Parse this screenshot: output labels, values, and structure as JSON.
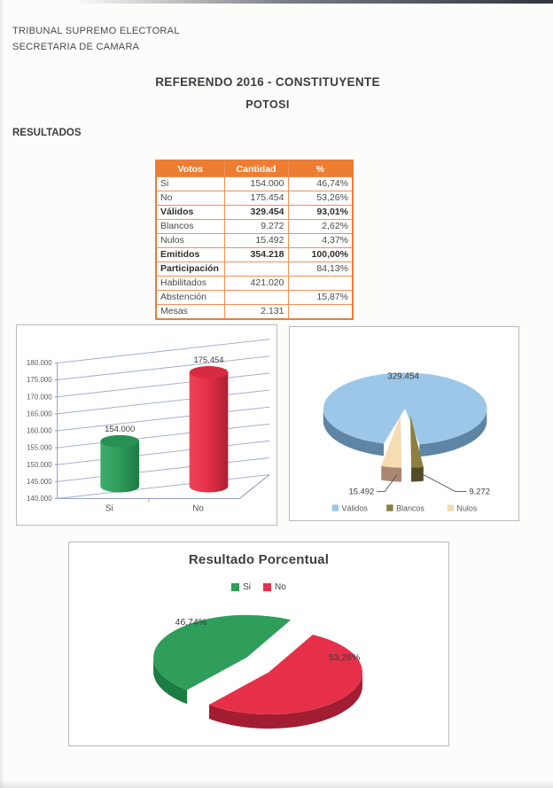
{
  "page": {
    "org_line1": "TRIBUNAL SUPREMO ELECTORAL",
    "org_line2": "SECRETARIA DE CAMARA",
    "title": "REFERENDO 2016 - CONSTITUYENTE",
    "subtitle": "POTOSI",
    "section_label": "RESULTADOS"
  },
  "results_table": {
    "headers": [
      "Votos",
      "Cantidad",
      "%"
    ],
    "header_bg": "#ED7D31",
    "header_text_color": "#FFFFFF",
    "border_color": "#EF9058",
    "border_color_strong": "#EC7C38",
    "rows": [
      {
        "label": "Si",
        "cantidad": "154.000",
        "pct": "46,74%",
        "label_bold": false,
        "value_bold": false
      },
      {
        "label": "No",
        "cantidad": "175.454",
        "pct": "53,26%",
        "label_bold": false,
        "value_bold": false
      },
      {
        "label": "Válidos",
        "cantidad": "329.454",
        "pct": "93,01%",
        "label_bold": true,
        "value_bold": true
      },
      {
        "label": "Blancos",
        "cantidad": "9.272",
        "pct": "2,62%",
        "label_bold": false,
        "value_bold": false
      },
      {
        "label": "Nulos",
        "cantidad": "15.492",
        "pct": "4,37%",
        "label_bold": false,
        "value_bold": false
      },
      {
        "label": "Emitidos",
        "cantidad": "354.218",
        "pct": "100,00%",
        "label_bold": true,
        "value_bold": true
      },
      {
        "label": "Participación",
        "cantidad": "",
        "pct": "84,13%",
        "label_bold": true,
        "value_bold": false
      },
      {
        "label": "Habilitados",
        "cantidad": "421.020",
        "pct": "",
        "label_bold": false,
        "value_bold": false
      },
      {
        "label": "Abstención",
        "cantidad": "",
        "pct": "15,87%",
        "label_bold": false,
        "value_bold": false
      },
      {
        "label": "Mesas",
        "cantidad": "2.131",
        "pct": "",
        "label_bold": false,
        "value_bold": false
      }
    ]
  },
  "chart_data": [
    {
      "type": "bar",
      "variant": "3d-cylinder",
      "title": "",
      "categories": [
        "Si",
        "No"
      ],
      "values": [
        154000,
        175454
      ],
      "value_labels": [
        "154.000",
        "175.454"
      ],
      "bar_colors": [
        "#2F9E5B",
        "#E63049"
      ],
      "bar_colors_light": [
        "#3DAD6C",
        "#EF4459"
      ],
      "bar_colors_dark": [
        "#1B7A43",
        "#AE1F33"
      ],
      "bar_colors_top": [
        "#2A9154",
        "#D82A41"
      ],
      "ylim": [
        140000,
        180000
      ],
      "ytick_step": 5000,
      "ytick_labels": [
        "140.000",
        "145.000",
        "150.000",
        "155.000",
        "160.000",
        "165.000",
        "170.000",
        "175.000",
        "180.000"
      ],
      "grid": true,
      "legend": "none",
      "grid_color": "#9FA8CE",
      "axis_color": "#8D98C2",
      "label_color": "#3f3f3f",
      "tick_color": "#595959"
    },
    {
      "type": "pie",
      "variant": "3d-exploded",
      "title": "",
      "legend_position": "bottom",
      "slices": [
        {
          "name": "Válidos",
          "value": 329454,
          "label": "329.454",
          "color": "#9CC7E8",
          "side_color": "#5E86A4"
        },
        {
          "name": "Blancos",
          "value": 9272,
          "label": "9.272",
          "color": "#8B8040",
          "side_color": "#514B28"
        },
        {
          "name": "Nulos",
          "value": 15492,
          "label": "15.492",
          "color": "#F5DCB3",
          "side_color": "#AC8874"
        }
      ],
      "label_color": "#3c3c3c",
      "legend_text_color": "#595959"
    },
    {
      "type": "pie",
      "variant": "3d-exploded",
      "title": "Resultado Porcentual",
      "legend_position": "top",
      "slices": [
        {
          "name": "Si",
          "value": 46.74,
          "label": "46,74%",
          "color": "#2F9E5B",
          "side_color": "#1C7C42"
        },
        {
          "name": "No",
          "value": 53.26,
          "label": "53,26%",
          "color": "#E63049",
          "side_color": "#A21D31"
        }
      ],
      "label_color": "#3a3a3a",
      "legend_text_color": "#444444"
    }
  ]
}
